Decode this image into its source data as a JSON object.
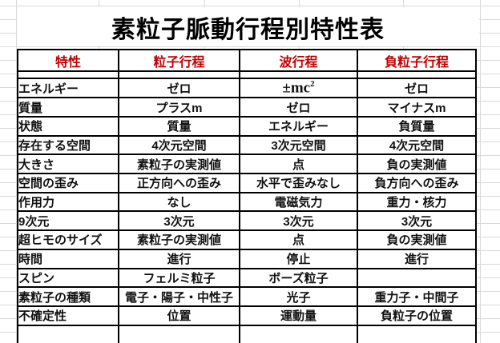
{
  "title": "素粒子脈動行程別特性表",
  "table": {
    "headers": [
      "特性",
      "粒子行程",
      "波行程",
      "負粒子行程"
    ],
    "rows": [
      {
        "label": "エネルギー",
        "values": [
          "ゼロ",
          "±mc²",
          "ゼロ"
        ]
      },
      {
        "label": "質量",
        "values": [
          "プラスm",
          "ゼロ",
          "マイナスm"
        ]
      },
      {
        "label": "状態",
        "values": [
          "質量",
          "エネルギー",
          "負質量"
        ]
      },
      {
        "label": "存在する空間",
        "values": [
          "4次元空間",
          "3次元空間",
          "4次元空間"
        ]
      },
      {
        "label": "大きさ",
        "values": [
          "素粒子の実測値",
          "点",
          "負の実測値"
        ]
      },
      {
        "label": "空間の歪み",
        "values": [
          "正方向への歪み",
          "水平で歪みなし",
          "負方向への歪み"
        ]
      },
      {
        "label": "作用力",
        "values": [
          "なし",
          "電磁気力",
          "重力・核力"
        ]
      },
      {
        "label": "9次元",
        "values": [
          "3次元",
          "3次元",
          "3次元"
        ]
      },
      {
        "label": "超ヒモのサイズ",
        "values": [
          "素粒子の実測値",
          "点",
          "負の実測値"
        ]
      },
      {
        "label": "時間",
        "values": [
          "進行",
          "停止",
          "進行"
        ]
      },
      {
        "label": "スピン",
        "values": [
          "フェルミ粒子",
          "ボーズ粒子",
          ""
        ]
      },
      {
        "label": "素粒子の種類",
        "values": [
          "電子・陽子・中性子",
          "光子",
          "重力子・中間子"
        ]
      },
      {
        "label": "不確定性",
        "values": [
          "位置",
          "運動量",
          "負粒子の位置"
        ]
      }
    ],
    "formula_cell": {
      "row_index": 0,
      "value_index": 1,
      "base": "±mc",
      "superscript": "2"
    }
  },
  "colors": {
    "header_text": "#c00000",
    "body_text": "#111111",
    "table_border": "#000000",
    "spreadsheet_gridline": "#d9d9d9",
    "background": "#ffffff"
  }
}
